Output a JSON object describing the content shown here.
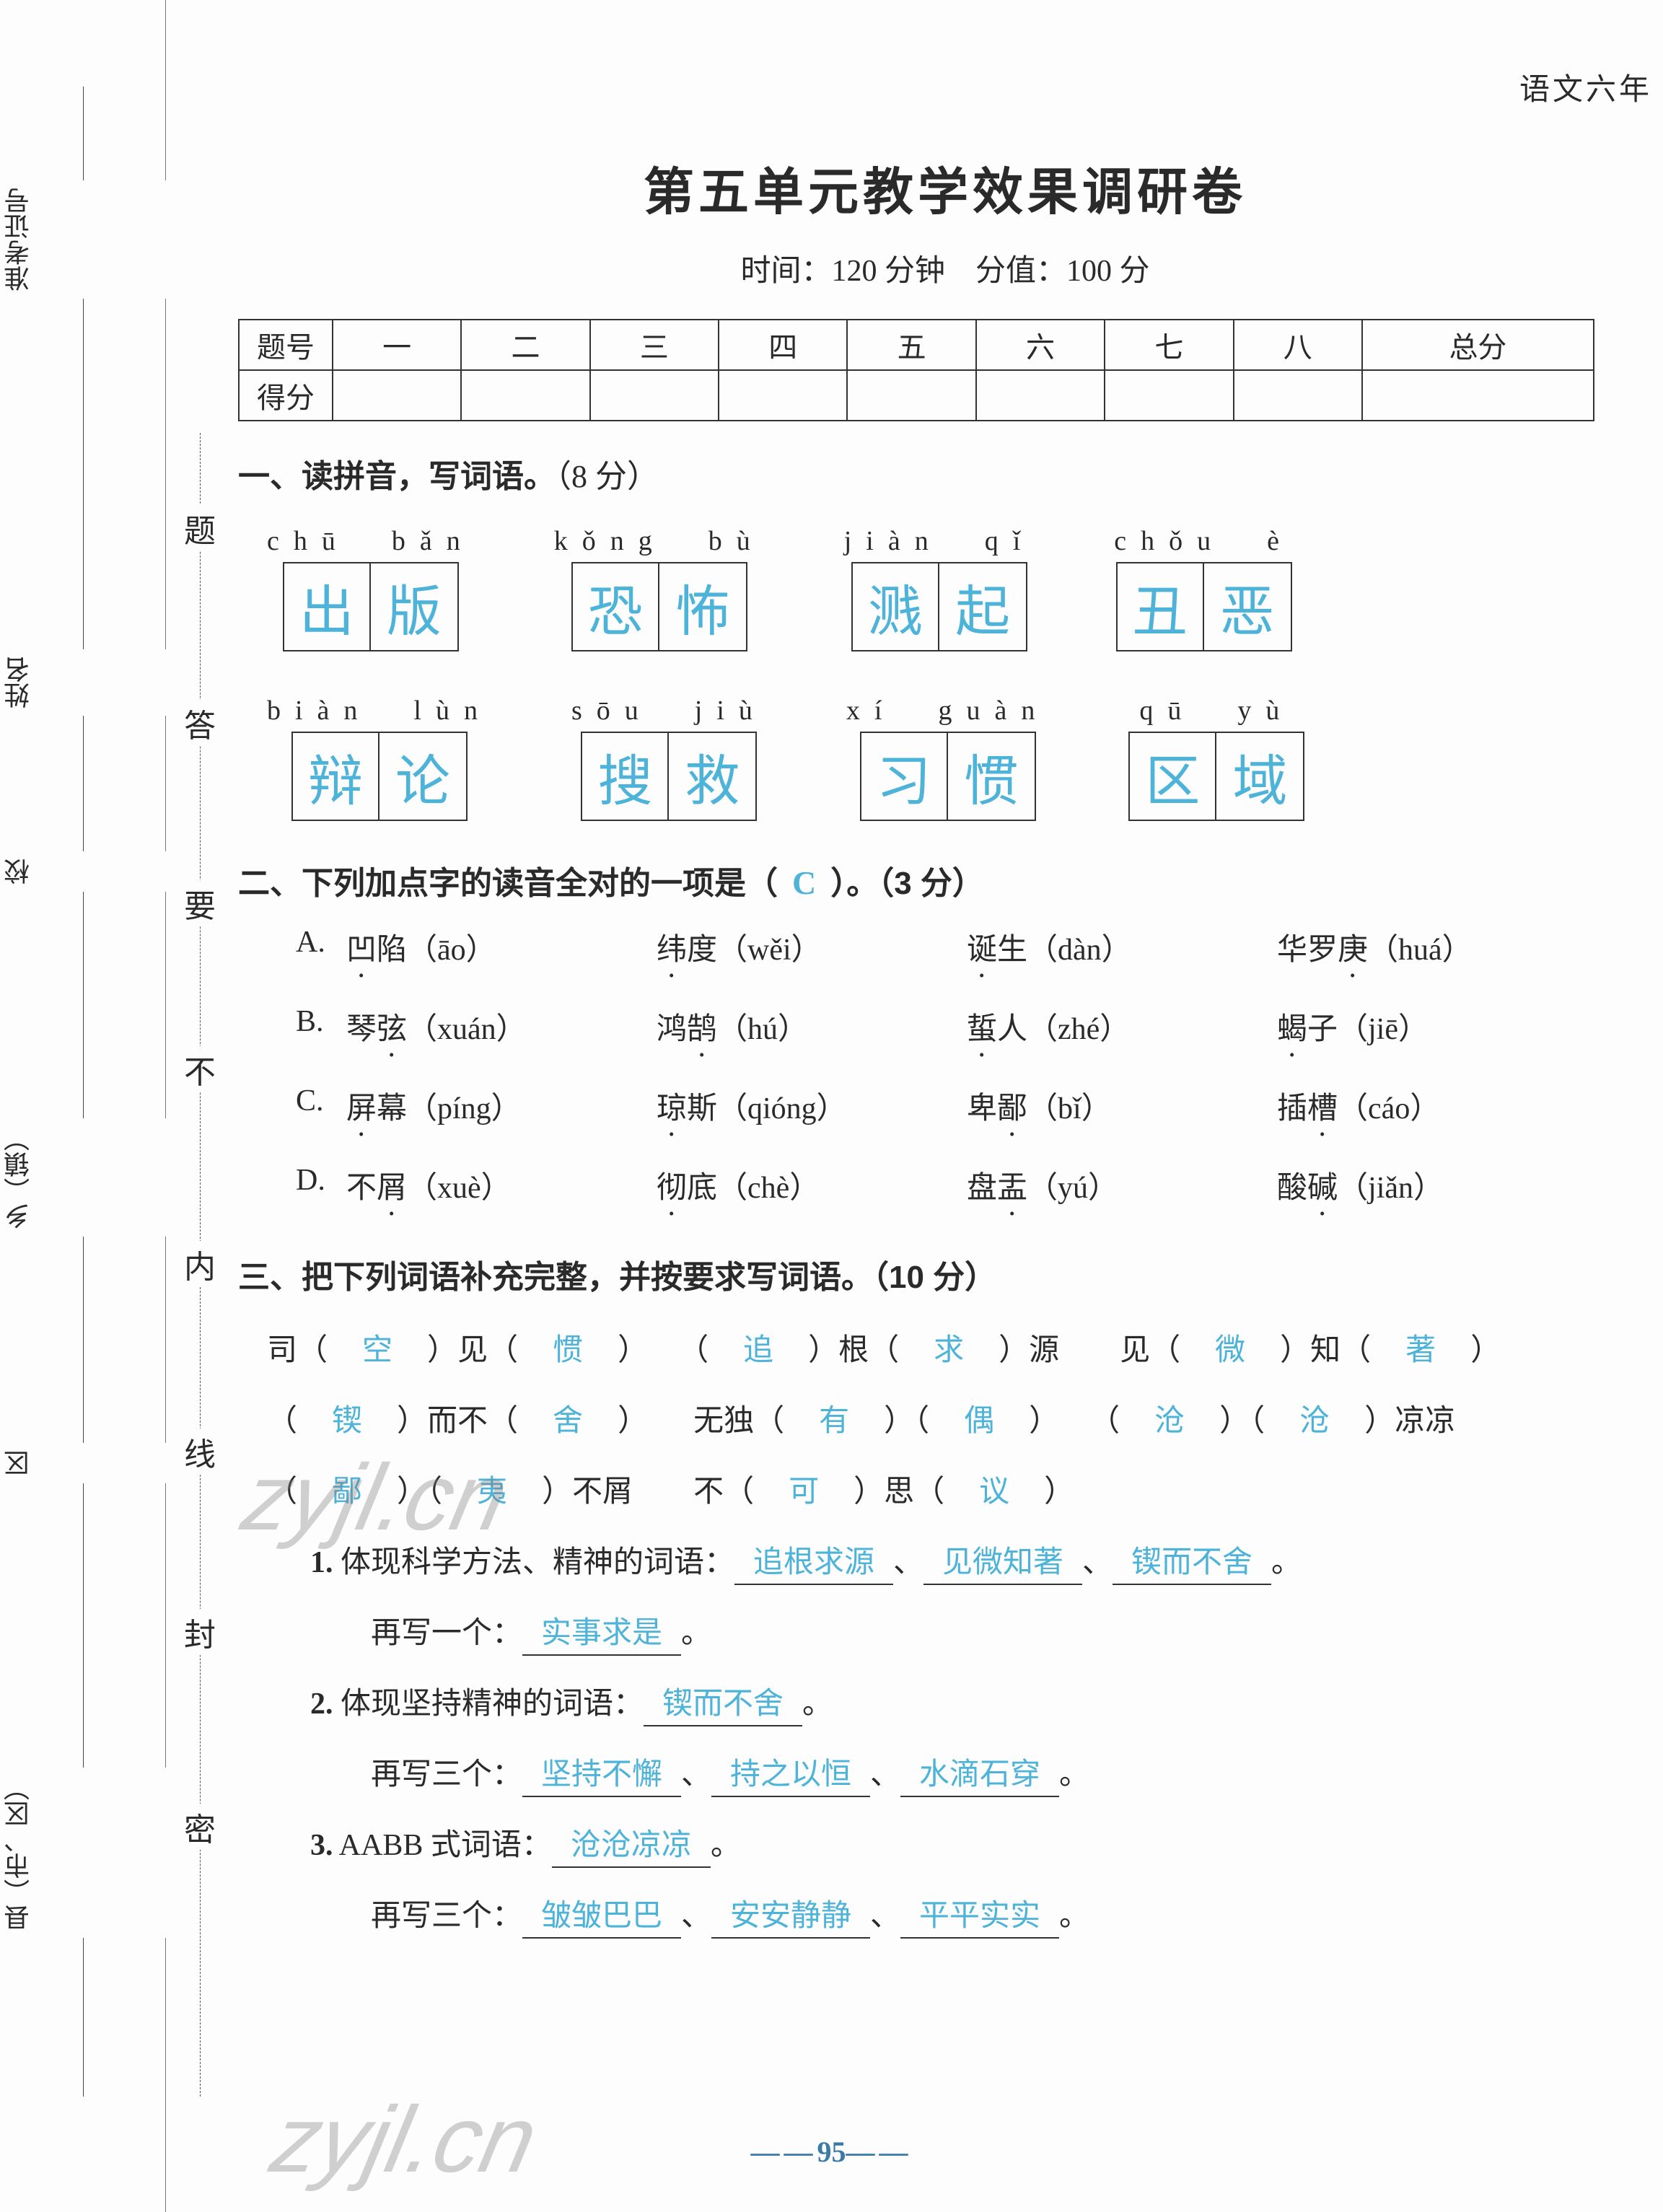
{
  "colors": {
    "answer": "#4db3d9",
    "text": "#2a2a2a",
    "border": "#333333",
    "pagenum": "#3a7aa8",
    "background": "#fdfdfd",
    "watermark": "rgba(120,120,120,0.35)"
  },
  "header": {
    "topRight": "语文六年",
    "title": "第五单元教学效果调研卷",
    "subtitle": "时间：120 分钟　分值：100 分"
  },
  "leftMargin": {
    "labels": [
      "准考证号",
      "姓名",
      "校",
      "乡（镇）",
      "区",
      "县（市、区）"
    ]
  },
  "sealCol": {
    "chars": [
      "题",
      "答",
      "要",
      "不",
      "内",
      "线",
      "封",
      "密"
    ]
  },
  "scoreTable": {
    "row1Label": "题号",
    "row2Label": "得分",
    "cols": [
      "一",
      "二",
      "三",
      "四",
      "五",
      "六",
      "七",
      "八",
      "总分"
    ]
  },
  "q1": {
    "head": "一、读拼音，写词语。",
    "pts": "（8 分）",
    "rows": [
      [
        {
          "pinyin": "chū　bǎn",
          "chars": [
            "出",
            "版"
          ]
        },
        {
          "pinyin": "kǒng　bù",
          "chars": [
            "恐",
            "怖"
          ]
        },
        {
          "pinyin": "jiàn　qǐ",
          "chars": [
            "溅",
            "起"
          ]
        },
        {
          "pinyin": "chǒu　è",
          "chars": [
            "丑",
            "恶"
          ]
        }
      ],
      [
        {
          "pinyin": "biàn　lùn",
          "chars": [
            "辩",
            "论"
          ]
        },
        {
          "pinyin": "sōu　jiù",
          "chars": [
            "搜",
            "救"
          ]
        },
        {
          "pinyin": "xí　guàn",
          "chars": [
            "习",
            "惯"
          ]
        },
        {
          "pinyin": "qū　yù",
          "chars": [
            "区",
            "域"
          ]
        }
      ]
    ]
  },
  "q2": {
    "head": "二、下列加点字的读音全对的一项是（",
    "headTail": "）。（3 分）",
    "answer": "C",
    "rows": [
      {
        "lbl": "A.",
        "items": [
          {
            "w": "凹",
            "r": "陷",
            "py": "āo"
          },
          {
            "w": "纬",
            "r": "度",
            "py": "wěi"
          },
          {
            "w": "诞",
            "r": "生",
            "py": "dàn"
          },
          {
            "w": "华罗",
            "r": "庚",
            "pre": true,
            "py": "huá"
          }
        ]
      },
      {
        "lbl": "B.",
        "items": [
          {
            "w": "琴",
            "r": "弦",
            "pre": true,
            "py": "xuán"
          },
          {
            "w": "鸿",
            "r": "鹄",
            "pre": true,
            "py": "hú"
          },
          {
            "w": "蜇",
            "r": "人",
            "py": "zhé"
          },
          {
            "w": "蝎",
            "r": "子",
            "py": "jiē"
          }
        ]
      },
      {
        "lbl": "C.",
        "items": [
          {
            "w": "屏",
            "r": "幕",
            "py": "píng"
          },
          {
            "w": "琼",
            "r": "斯",
            "py": "qióng"
          },
          {
            "w": "卑",
            "r": "鄙",
            "pre": true,
            "py": "bǐ"
          },
          {
            "w": "插",
            "r": "槽",
            "pre": true,
            "py": "cáo"
          }
        ]
      },
      {
        "lbl": "D.",
        "items": [
          {
            "w": "不",
            "r": "屑",
            "pre": true,
            "py": "xuè"
          },
          {
            "w": "彻",
            "r": "底",
            "py": "chè"
          },
          {
            "w": "盘",
            "r": "盂",
            "pre": true,
            "py": "yú"
          },
          {
            "w": "酸",
            "r": "碱",
            "pre": true,
            "py": "jiǎn"
          }
        ]
      }
    ]
  },
  "q3": {
    "head": "三、把下列词语补充完整，并按要求写词语。（10 分）",
    "line1": {
      "parts": [
        {
          "t": "司",
          "f": "空",
          "t2": "见",
          "f2": "惯"
        },
        {
          "f": "追",
          "t": "根",
          "f2": "求",
          "t2": "源",
          "prefixParen": true
        },
        {
          "t": "见",
          "f": "微",
          "t2": "知",
          "f2": "著"
        }
      ]
    },
    "line2": {
      "parts": [
        {
          "f": "锲",
          "t": "而不",
          "f2": "舍"
        },
        {
          "t": "无独",
          "f": "有",
          "f2": "偶"
        },
        {
          "f": "沧",
          "f2": "沧",
          "t": "凉凉"
        }
      ]
    },
    "line3": {
      "parts": [
        {
          "f": "鄙",
          "f2": "夷",
          "t": "不屑"
        },
        {
          "t": "不",
          "f": "可",
          "t2": "思",
          "f2": "议"
        }
      ]
    },
    "subs": [
      {
        "num": "1.",
        "label": "体现科学方法、精神的词语：",
        "answers": [
          "追根求源",
          "见微知著",
          "锲而不舍"
        ],
        "tail": "。",
        "extraLabel": "再写一个：",
        "extra": [
          "实事求是"
        ],
        "extraTail": "。"
      },
      {
        "num": "2.",
        "label": "体现坚持精神的词语：",
        "answers": [
          "锲而不舍"
        ],
        "tail": "。",
        "extraLabel": "再写三个：",
        "extra": [
          "坚持不懈",
          "持之以恒",
          "水滴石穿"
        ],
        "extraTail": "。"
      },
      {
        "num": "3.",
        "label": "AABB 式词语：",
        "answers": [
          "沧沧凉凉"
        ],
        "tail": "。",
        "extraLabel": "再写三个：",
        "extra": [
          "皱皱巴巴",
          "安安静静",
          "平平实实"
        ],
        "extraTail": "。"
      }
    ]
  },
  "pageNumber": "95",
  "watermarks": [
    "zyjl.cn",
    "zyjl.cn"
  ]
}
